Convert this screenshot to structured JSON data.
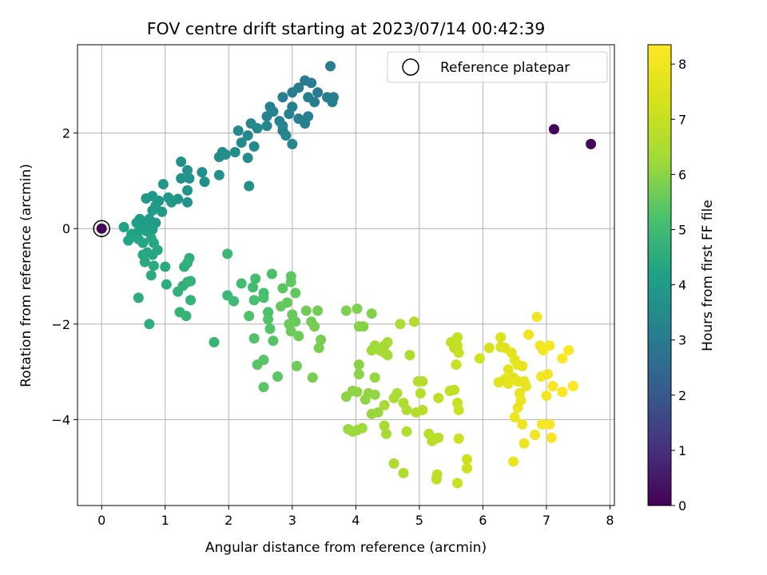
{
  "chart_data": {
    "type": "scatter",
    "title": "FOV centre drift starting at 2023/07/14 00:42:39",
    "xlabel": "Angular distance from reference (arcmin)",
    "ylabel": "Rotation from reference (arcmin)",
    "xlim": [
      -0.38,
      8.07
    ],
    "ylim": [
      -5.8,
      3.85
    ],
    "xticks": [
      0,
      1,
      2,
      3,
      4,
      5,
      6,
      7,
      8
    ],
    "yticks": [
      -4,
      -2,
      0,
      2
    ],
    "grid": true,
    "legend": {
      "label": "Reference platepar",
      "placement": "top-right"
    },
    "colorbar": {
      "label": "Hours from first FF file",
      "min": 0,
      "max": 8.35,
      "ticks": [
        0,
        1,
        2,
        3,
        4,
        5,
        6,
        7,
        8
      ],
      "colormap": "viridis"
    },
    "reference_point": {
      "x": 0,
      "y": 0
    },
    "points": [
      [
        0,
        0,
        0.02
      ],
      [
        7.12,
        2.08,
        0.1
      ],
      [
        7.7,
        1.77,
        0.12
      ],
      [
        3.6,
        3.4,
        3.0
      ],
      [
        3.2,
        3.1,
        3.02
      ],
      [
        3.1,
        2.95,
        3.05
      ],
      [
        3.3,
        3.05,
        3.03
      ],
      [
        3.4,
        2.85,
        3.04
      ],
      [
        3.55,
        2.75,
        3.06
      ],
      [
        3.63,
        2.65,
        3.08
      ],
      [
        3.65,
        2.75,
        3.07
      ],
      [
        3.0,
        2.85,
        3.09
      ],
      [
        2.85,
        2.75,
        3.1
      ],
      [
        3.25,
        2.75,
        3.11
      ],
      [
        3.0,
        2.55,
        3.12
      ],
      [
        3.35,
        2.65,
        3.13
      ],
      [
        2.95,
        2.4,
        3.15
      ],
      [
        3.1,
        2.3,
        3.16
      ],
      [
        3.2,
        2.2,
        3.17
      ],
      [
        3.25,
        2.35,
        3.18
      ],
      [
        2.65,
        2.55,
        3.2
      ],
      [
        2.7,
        2.45,
        3.22
      ],
      [
        2.6,
        2.35,
        3.24
      ],
      [
        2.8,
        2.25,
        3.25
      ],
      [
        2.85,
        2.15,
        3.27
      ],
      [
        2.85,
        2.05,
        3.3
      ],
      [
        2.9,
        1.95,
        3.32
      ],
      [
        3.0,
        1.77,
        3.34
      ],
      [
        2.6,
        2.15,
        3.36
      ],
      [
        2.35,
        2.2,
        3.38
      ],
      [
        2.45,
        2.1,
        3.4
      ],
      [
        2.3,
        1.95,
        3.42
      ],
      [
        2.15,
        2.05,
        3.44
      ],
      [
        2.2,
        1.8,
        3.46
      ],
      [
        2.4,
        1.72,
        3.48
      ],
      [
        2.3,
        1.48,
        3.5
      ],
      [
        2.1,
        1.6,
        3.52
      ],
      [
        1.9,
        1.6,
        3.54
      ],
      [
        1.85,
        1.5,
        3.56
      ],
      [
        1.95,
        1.55,
        3.58
      ],
      [
        1.58,
        1.18,
        3.6
      ],
      [
        1.62,
        0.98,
        3.62
      ],
      [
        1.85,
        1.12,
        3.64
      ],
      [
        2.32,
        0.89,
        3.66
      ],
      [
        1.25,
        1.4,
        3.68
      ],
      [
        1.35,
        1.22,
        3.7
      ],
      [
        1.25,
        1.05,
        3.72
      ],
      [
        1.38,
        1.05,
        3.74
      ],
      [
        1.35,
        0.8,
        3.76
      ],
      [
        1.35,
        0.55,
        3.78
      ],
      [
        1.2,
        0.62,
        3.8
      ],
      [
        1.1,
        0.55,
        3.82
      ],
      [
        1.05,
        0.65,
        3.84
      ],
      [
        0.97,
        0.93,
        3.86
      ],
      [
        0.9,
        0.58,
        3.88
      ],
      [
        0.85,
        0.48,
        3.9
      ],
      [
        0.8,
        0.68,
        3.92
      ],
      [
        0.7,
        0.63,
        3.94
      ],
      [
        0.95,
        0.35,
        3.96
      ],
      [
        0.8,
        0.38,
        3.98
      ],
      [
        0.75,
        0.2,
        4.0
      ],
      [
        0.85,
        0.12,
        4.02
      ],
      [
        0.7,
        0.12,
        4.04
      ],
      [
        0.6,
        0.2,
        4.06
      ],
      [
        0.55,
        0.12,
        4.08
      ],
      [
        0.65,
        0.05,
        4.1
      ],
      [
        0.75,
        0.03,
        4.12
      ],
      [
        0.8,
        -0.02,
        4.14
      ],
      [
        0.7,
        -0.05,
        4.16
      ],
      [
        0.6,
        -0.03,
        4.18
      ],
      [
        0.55,
        -0.1,
        4.2
      ],
      [
        0.47,
        -0.12,
        4.22
      ],
      [
        0.35,
        0.03,
        4.24
      ],
      [
        0.42,
        -0.25,
        4.26
      ],
      [
        0.58,
        -0.22,
        4.28
      ],
      [
        0.65,
        -0.3,
        4.3
      ],
      [
        0.78,
        -0.2,
        4.32
      ],
      [
        0.82,
        -0.3,
        4.34
      ],
      [
        0.88,
        -0.45,
        4.36
      ],
      [
        0.8,
        -0.55,
        4.38
      ],
      [
        0.72,
        -0.5,
        4.4
      ],
      [
        0.65,
        -0.55,
        4.42
      ],
      [
        0.68,
        -0.7,
        4.44
      ],
      [
        0.82,
        -0.78,
        4.46
      ],
      [
        1.0,
        -0.8,
        4.48
      ],
      [
        0.78,
        -0.98,
        4.5
      ],
      [
        1.02,
        -1.17,
        4.52
      ],
      [
        0.58,
        -1.45,
        4.54
      ],
      [
        0.75,
        -2.0,
        4.56
      ],
      [
        1.3,
        -0.8,
        4.58
      ],
      [
        1.38,
        -0.62,
        4.6
      ],
      [
        1.35,
        -0.72,
        4.62
      ],
      [
        1.28,
        -1.2,
        4.64
      ],
      [
        1.2,
        -1.32,
        4.66
      ],
      [
        1.35,
        -1.12,
        4.68
      ],
      [
        1.4,
        -1.1,
        4.7
      ],
      [
        1.4,
        -1.5,
        4.72
      ],
      [
        1.23,
        -1.75,
        4.74
      ],
      [
        1.33,
        -1.83,
        4.76
      ],
      [
        1.77,
        -2.38,
        4.8
      ],
      [
        1.98,
        -0.53,
        4.85
      ],
      [
        1.98,
        -1.4,
        4.9
      ],
      [
        2.08,
        -1.52,
        4.95
      ],
      [
        2.2,
        -1.15,
        5.0
      ],
      [
        2.38,
        -1.23,
        5.05
      ],
      [
        2.42,
        -1.05,
        5.1
      ],
      [
        2.55,
        -1.35,
        5.12
      ],
      [
        2.4,
        -1.5,
        5.15
      ],
      [
        2.55,
        -1.45,
        5.18
      ],
      [
        2.68,
        -0.95,
        5.2
      ],
      [
        2.62,
        -1.75,
        5.22
      ],
      [
        2.32,
        -1.83,
        5.25
      ],
      [
        2.4,
        -2.3,
        5.28
      ],
      [
        2.62,
        -1.9,
        5.3
      ],
      [
        2.65,
        -2.1,
        5.32
      ],
      [
        2.7,
        -2.35,
        5.34
      ],
      [
        2.55,
        -2.75,
        5.36
      ],
      [
        2.45,
        -2.85,
        5.38
      ],
      [
        2.55,
        -3.32,
        5.4
      ],
      [
        2.77,
        -3.1,
        5.42
      ],
      [
        2.85,
        -1.25,
        5.44
      ],
      [
        2.98,
        -1.0,
        5.46
      ],
      [
        2.98,
        -1.12,
        5.48
      ],
      [
        3.05,
        -1.35,
        5.5
      ],
      [
        2.82,
        -1.63,
        5.52
      ],
      [
        2.92,
        -1.55,
        5.54
      ],
      [
        3.0,
        -1.8,
        5.56
      ],
      [
        2.95,
        -2.0,
        5.58
      ],
      [
        3.05,
        -1.95,
        5.6
      ],
      [
        2.98,
        -2.15,
        5.62
      ],
      [
        3.1,
        -2.25,
        5.64
      ],
      [
        3.07,
        -2.88,
        5.66
      ],
      [
        3.22,
        -1.72,
        5.68
      ],
      [
        3.4,
        -1.72,
        5.7
      ],
      [
        3.3,
        -1.95,
        5.72
      ],
      [
        3.35,
        -2.05,
        5.74
      ],
      [
        3.45,
        -2.33,
        5.76
      ],
      [
        3.42,
        -2.5,
        5.78
      ],
      [
        3.32,
        -3.12,
        5.8
      ],
      [
        3.85,
        -1.72,
        5.85
      ],
      [
        4.02,
        -1.68,
        5.88
      ],
      [
        4.25,
        -1.78,
        5.9
      ],
      [
        4.05,
        -2.05,
        5.92
      ],
      [
        4.12,
        -2.05,
        5.94
      ],
      [
        4.05,
        -2.85,
        5.96
      ],
      [
        4.05,
        -3.05,
        5.98
      ],
      [
        3.85,
        -3.52,
        6.0
      ],
      [
        3.95,
        -3.4,
        6.02
      ],
      [
        4.02,
        -3.42,
        6.04
      ],
      [
        4.15,
        -3.58,
        6.06
      ],
      [
        4.2,
        -3.45,
        6.08
      ],
      [
        4.3,
        -3.48,
        6.1
      ],
      [
        4.3,
        -3.12,
        6.12
      ],
      [
        4.25,
        -3.88,
        6.14
      ],
      [
        4.35,
        -3.85,
        6.16
      ],
      [
        3.88,
        -4.2,
        6.18
      ],
      [
        4.02,
        -4.22,
        6.2
      ],
      [
        3.95,
        -4.25,
        6.22
      ],
      [
        4.1,
        -4.18,
        6.24
      ],
      [
        4.25,
        -2.55,
        6.26
      ],
      [
        4.3,
        -2.45,
        6.28
      ],
      [
        4.45,
        -2.45,
        6.3
      ],
      [
        4.45,
        -2.6,
        6.32
      ],
      [
        4.38,
        -2.55,
        6.34
      ],
      [
        4.5,
        -2.65,
        6.36
      ],
      [
        4.5,
        -2.38,
        6.38
      ],
      [
        4.45,
        -3.7,
        6.4
      ],
      [
        4.45,
        -4.13,
        6.42
      ],
      [
        4.48,
        -4.3,
        6.44
      ],
      [
        4.6,
        -3.55,
        6.46
      ],
      [
        4.65,
        -3.45,
        6.48
      ],
      [
        4.7,
        -2.0,
        6.5
      ],
      [
        4.75,
        -3.65,
        6.52
      ],
      [
        4.8,
        -3.8,
        6.54
      ],
      [
        4.85,
        -2.65,
        6.56
      ],
      [
        4.6,
        -4.92,
        6.58
      ],
      [
        4.75,
        -5.12,
        6.6
      ],
      [
        4.8,
        -4.25,
        6.62
      ],
      [
        4.92,
        -1.95,
        6.64
      ],
      [
        4.95,
        -3.85,
        6.66
      ],
      [
        4.98,
        -3.2,
        6.68
      ],
      [
        5.05,
        -3.2,
        6.7
      ],
      [
        5.02,
        -3.45,
        6.72
      ],
      [
        5.05,
        -3.8,
        6.74
      ],
      [
        5.15,
        -4.3,
        6.76
      ],
      [
        5.2,
        -4.45,
        6.78
      ],
      [
        5.25,
        -4.4,
        6.8
      ],
      [
        5.3,
        -4.38,
        6.82
      ],
      [
        5.27,
        -5.25,
        6.84
      ],
      [
        5.28,
        -5.15,
        6.86
      ],
      [
        5.3,
        -3.55,
        6.88
      ],
      [
        5.48,
        -3.4,
        6.9
      ],
      [
        5.55,
        -3.38,
        6.92
      ],
      [
        5.5,
        -2.38,
        6.94
      ],
      [
        5.55,
        -2.5,
        6.96
      ],
      [
        5.6,
        -2.28,
        6.98
      ],
      [
        5.6,
        -2.45,
        7.0
      ],
      [
        5.62,
        -2.6,
        7.02
      ],
      [
        5.58,
        -2.85,
        7.04
      ],
      [
        5.6,
        -3.65,
        7.06
      ],
      [
        5.62,
        -3.8,
        7.08
      ],
      [
        5.62,
        -4.4,
        7.1
      ],
      [
        5.6,
        -5.33,
        7.12
      ],
      [
        5.75,
        -4.83,
        7.14
      ],
      [
        5.75,
        -5.02,
        7.16
      ],
      [
        5.95,
        -2.72,
        7.2
      ],
      [
        6.1,
        -2.5,
        7.3
      ],
      [
        6.28,
        -2.28,
        7.4
      ],
      [
        6.28,
        -2.48,
        7.5
      ],
      [
        6.35,
        -2.5,
        7.55
      ],
      [
        6.45,
        -2.6,
        7.6
      ],
      [
        6.4,
        -2.95,
        7.62
      ],
      [
        6.5,
        -2.75,
        7.65
      ],
      [
        6.55,
        -2.85,
        7.68
      ],
      [
        6.48,
        -3.12,
        7.7
      ],
      [
        6.35,
        -3.15,
        7.72
      ],
      [
        6.4,
        -3.25,
        7.74
      ],
      [
        6.55,
        -3.2,
        7.76
      ],
      [
        6.58,
        -3.45,
        7.78
      ],
      [
        6.62,
        -2.88,
        7.8
      ],
      [
        6.65,
        -3.2,
        7.82
      ],
      [
        6.68,
        -3.3,
        7.84
      ],
      [
        6.6,
        -3.6,
        7.86
      ],
      [
        6.55,
        -3.75,
        7.88
      ],
      [
        6.5,
        -3.95,
        7.9
      ],
      [
        6.62,
        -4.1,
        7.92
      ],
      [
        6.65,
        -4.5,
        7.94
      ],
      [
        6.48,
        -4.88,
        7.96
      ],
      [
        6.82,
        -4.32,
        7.98
      ],
      [
        6.72,
        -2.22,
        8.0
      ],
      [
        6.85,
        -1.85,
        8.02
      ],
      [
        6.9,
        -2.45,
        8.04
      ],
      [
        6.95,
        -2.55,
        8.06
      ],
      [
        7.05,
        -2.45,
        8.08
      ],
      [
        6.92,
        -3.1,
        8.1
      ],
      [
        7.02,
        -3.05,
        8.12
      ],
      [
        7.0,
        -3.5,
        8.14
      ],
      [
        6.93,
        -4.1,
        8.16
      ],
      [
        7.05,
        -4.1,
        8.18
      ],
      [
        7.08,
        -4.38,
        8.2
      ],
      [
        7.1,
        -3.3,
        8.22
      ],
      [
        7.25,
        -3.42,
        8.24
      ],
      [
        7.25,
        -2.72,
        8.26
      ],
      [
        7.35,
        -2.55,
        8.28
      ],
      [
        7.42,
        -3.3,
        8.3
      ],
      [
        6.25,
        -3.22,
        7.58
      ]
    ]
  }
}
